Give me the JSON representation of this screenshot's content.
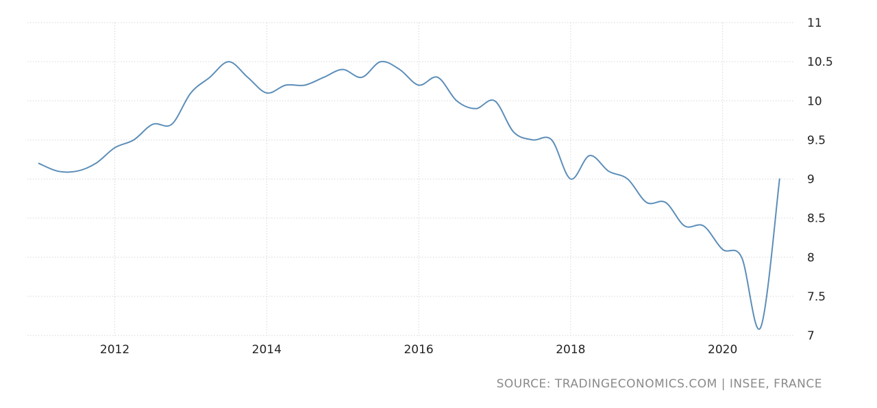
{
  "chart_data": {
    "type": "line",
    "title": "",
    "xlabel": "",
    "ylabel": "",
    "xlim": [
      2010.85,
      2020.95
    ],
    "ylim": [
      7,
      11
    ],
    "x_ticks": [
      2012,
      2014,
      2016,
      2018,
      2020
    ],
    "y_ticks": [
      7,
      7.5,
      8,
      8.5,
      9,
      9.5,
      10,
      10.5,
      11
    ],
    "y_axis_position": "right",
    "grid": true,
    "legend": "none",
    "series": [
      {
        "color": "#5b8db8",
        "x": [
          2011.0,
          2011.25,
          2011.5,
          2011.75,
          2012.0,
          2012.25,
          2012.5,
          2012.75,
          2013.0,
          2013.25,
          2013.5,
          2013.75,
          2014.0,
          2014.25,
          2014.5,
          2014.75,
          2015.0,
          2015.25,
          2015.5,
          2015.75,
          2016.0,
          2016.25,
          2016.5,
          2016.75,
          2017.0,
          2017.25,
          2017.5,
          2017.75,
          2018.0,
          2018.25,
          2018.5,
          2018.75,
          2019.0,
          2019.25,
          2019.5,
          2019.75,
          2020.0,
          2020.25,
          2020.5,
          2020.75
        ],
        "values": [
          9.2,
          9.1,
          9.1,
          9.2,
          9.4,
          9.5,
          9.7,
          9.7,
          10.1,
          10.3,
          10.5,
          10.3,
          10.1,
          10.2,
          10.2,
          10.3,
          10.4,
          10.3,
          10.5,
          10.4,
          10.2,
          10.3,
          10.0,
          9.9,
          10.0,
          9.6,
          9.5,
          9.5,
          9.0,
          9.3,
          9.1,
          9.0,
          8.7,
          8.7,
          8.4,
          8.4,
          8.1,
          8.0,
          7.1,
          9.0
        ]
      }
    ]
  },
  "source_text": "SOURCE: TRADINGECONOMICS.COM | INSEE, FRANCE"
}
